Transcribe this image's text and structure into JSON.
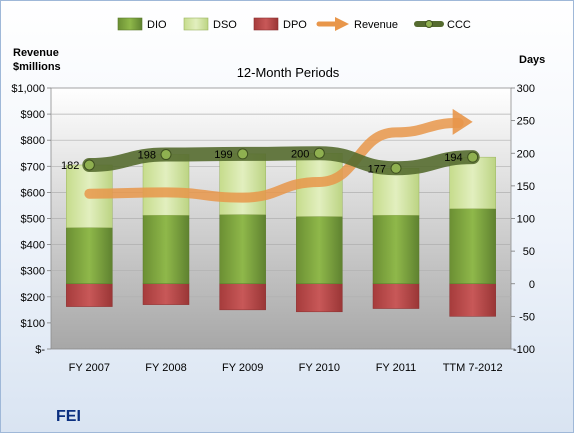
{
  "company": "FEI",
  "chart_data": {
    "type": "bar",
    "title": "12-Month Periods",
    "left_axis_title": [
      "Revenue",
      "$millions"
    ],
    "right_axis_title": "Days",
    "categories": [
      "FY 2007",
      "FY 2008",
      "FY 2009",
      "FY 2010",
      "FY 2011",
      "TTM 7-2012"
    ],
    "left_axis": {
      "range": [
        0,
        1000
      ],
      "ticks": [
        {
          "value": 0,
          "label": "$-"
        },
        {
          "value": 100,
          "label": "$100"
        },
        {
          "value": 200,
          "label": "$200"
        },
        {
          "value": 300,
          "label": "$300"
        },
        {
          "value": 400,
          "label": "$400"
        },
        {
          "value": 500,
          "label": "$500"
        },
        {
          "value": 600,
          "label": "$600"
        },
        {
          "value": 700,
          "label": "$700"
        },
        {
          "value": 800,
          "label": "$800"
        },
        {
          "value": 900,
          "label": "$900"
        },
        {
          "value": 1000,
          "label": "$1,000"
        }
      ]
    },
    "right_axis": {
      "range": [
        -100,
        300
      ],
      "ticks": [
        {
          "value": -100,
          "label": "-100"
        },
        {
          "value": -50,
          "label": "-50"
        },
        {
          "value": 0,
          "label": "0"
        },
        {
          "value": 50,
          "label": "50"
        },
        {
          "value": 100,
          "label": "100"
        },
        {
          "value": 150,
          "label": "150"
        },
        {
          "value": 200,
          "label": "200"
        },
        {
          "value": 250,
          "label": "250"
        },
        {
          "value": 300,
          "label": "300"
        }
      ]
    },
    "legend_position": "top",
    "grid": true,
    "series": [
      {
        "name": "DIO",
        "type": "stacked-bar",
        "axis": "right",
        "color": "#7fa640",
        "values": [
          86,
          105,
          106,
          103,
          105,
          115
        ]
      },
      {
        "name": "DSO",
        "type": "stacked-bar",
        "axis": "right",
        "color": "#d4e6a6",
        "values": [
          96,
          93,
          93,
          97,
          72,
          79
        ]
      },
      {
        "name": "DPO",
        "type": "negative-bar",
        "axis": "right",
        "color": "#b84a4a",
        "values": [
          -35,
          -32,
          -40,
          -43,
          -38,
          -50
        ]
      },
      {
        "name": "Revenue",
        "type": "arrow-line",
        "axis": "left",
        "color": "#e8964a",
        "values": [
          595,
          600,
          580,
          640,
          830,
          870
        ]
      },
      {
        "name": "CCC",
        "type": "line",
        "axis": "right",
        "color": "#556b2f",
        "values": [
          182,
          198,
          199,
          200,
          177,
          194
        ],
        "labels": [
          "182",
          "198",
          "199",
          "200",
          "177",
          "194"
        ]
      }
    ]
  }
}
